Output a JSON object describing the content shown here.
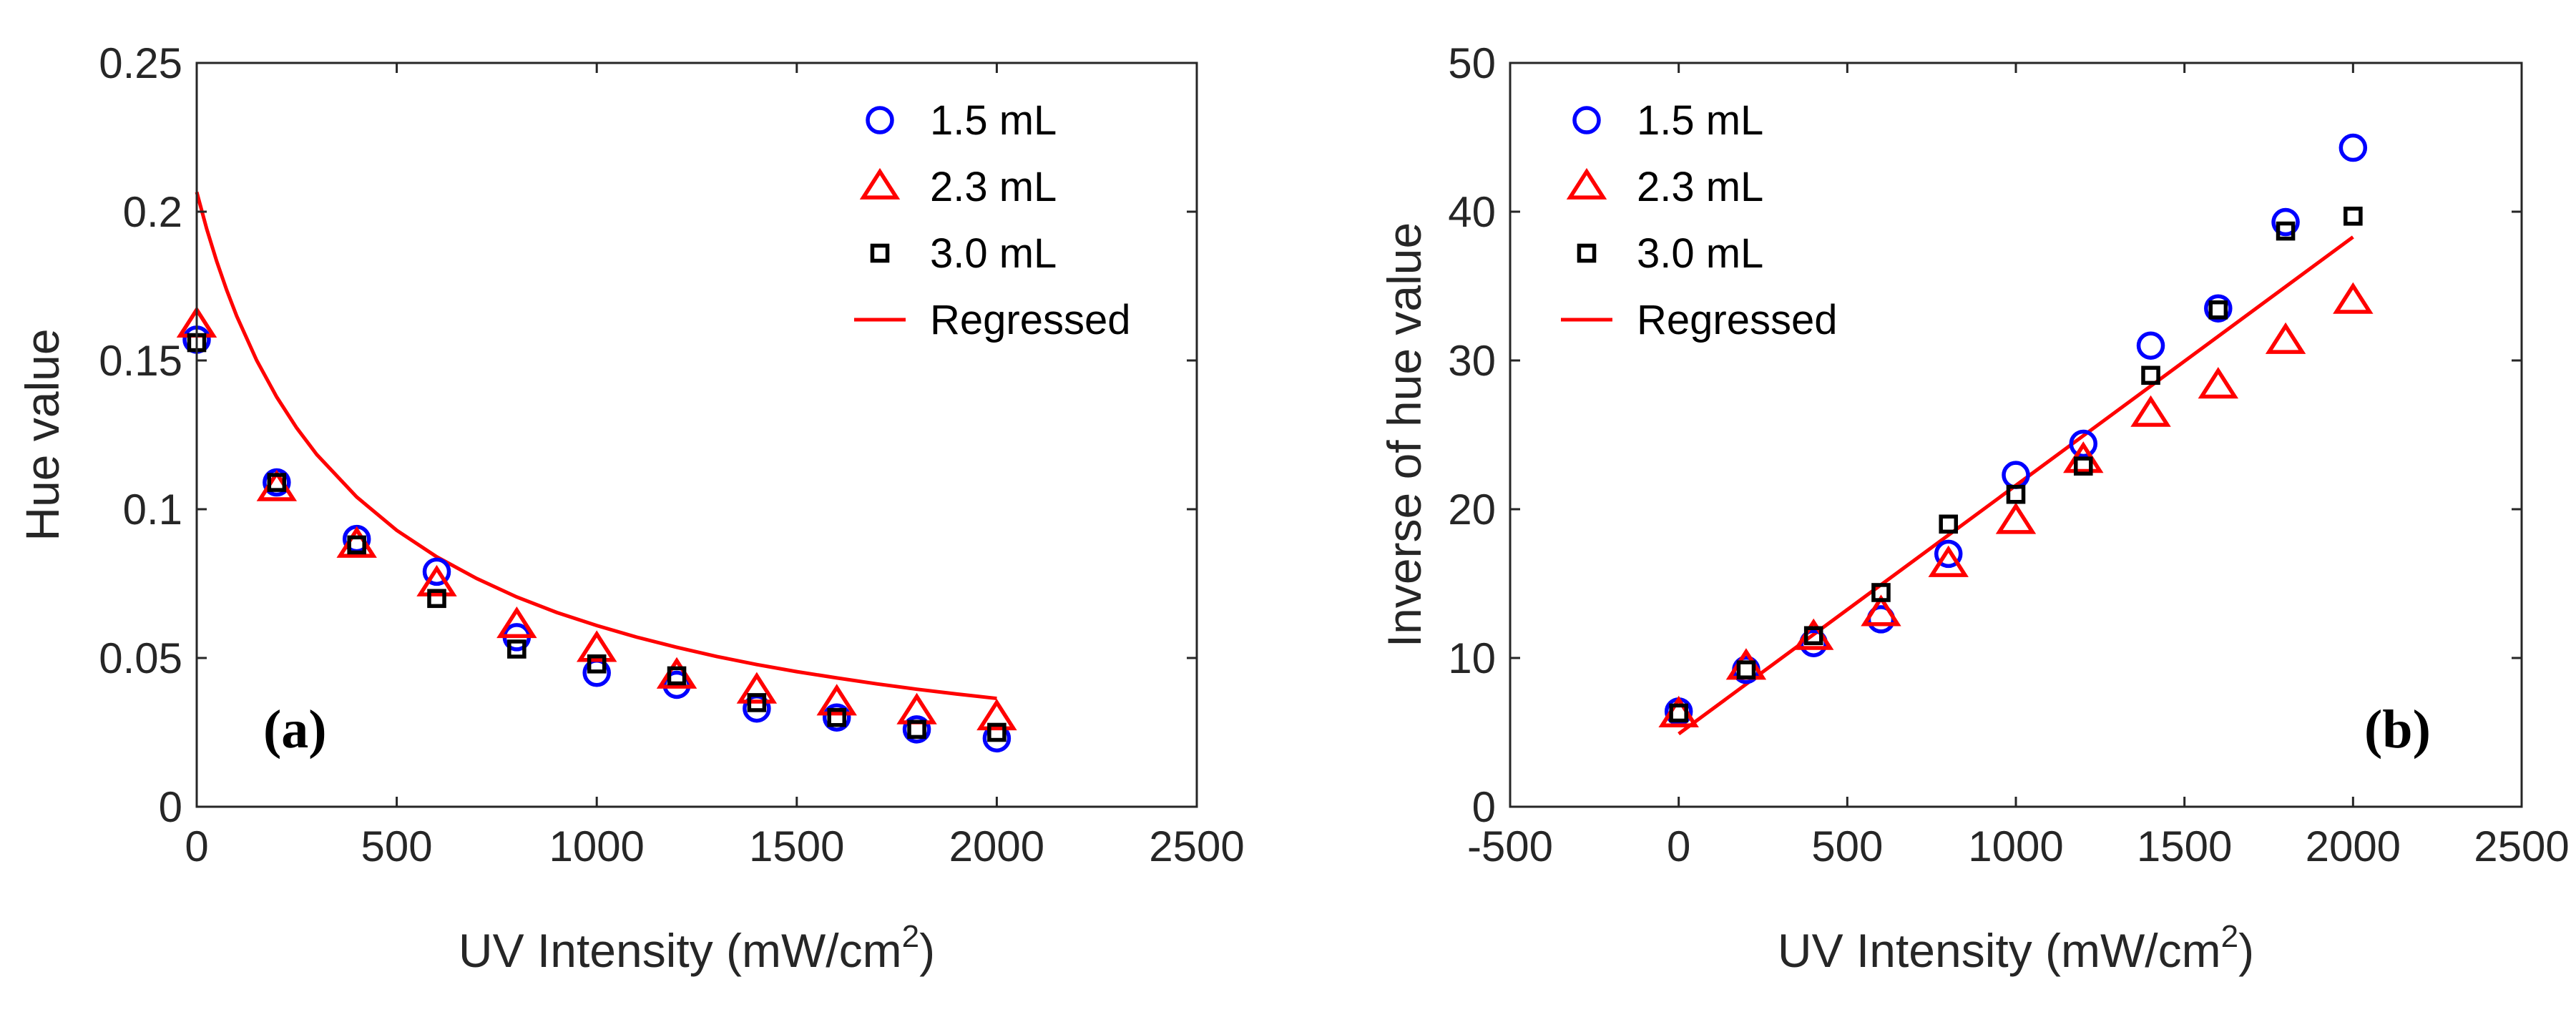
{
  "colors": {
    "series_1": "#0000ff",
    "series_2": "#ff0000",
    "series_3": "#000000",
    "regressed": "#ff0000",
    "axis": "#262626"
  },
  "chart_data": [
    {
      "type": "scatter",
      "panel_label": "(a)",
      "xlabel": "UV Intensity (mW/cm",
      "xlabel_sup": "2",
      "xlabel_end": ")",
      "ylabel": "Hue value",
      "xlim": [
        0,
        2500
      ],
      "ylim": [
        0,
        0.25
      ],
      "xticks": [
        0,
        500,
        1000,
        1500,
        2000,
        2500
      ],
      "xtick_labels": [
        "0",
        "500",
        "1000",
        "1500",
        "2000",
        "2500"
      ],
      "yticks": [
        0,
        0.05,
        0.1,
        0.15,
        0.2,
        0.25
      ],
      "ytick_labels": [
        "0",
        "0.05",
        "0.1",
        "0.15",
        "0.2",
        "0.25"
      ],
      "legend_position": "top-right",
      "x": [
        0,
        200,
        400,
        600,
        800,
        1000,
        1200,
        1400,
        1600,
        1800,
        2000
      ],
      "series": [
        {
          "name": "1.5 mL",
          "marker": "circle",
          "color": "#0000ff",
          "values": [
            0.157,
            0.109,
            0.09,
            0.079,
            0.057,
            0.045,
            0.041,
            0.033,
            0.03,
            0.026,
            0.023
          ]
        },
        {
          "name": "2.3 mL",
          "marker": "triangle",
          "color": "#ff0000",
          "values": [
            0.162,
            0.107,
            0.088,
            0.075,
            0.061,
            0.053,
            0.044,
            0.039,
            0.035,
            0.032,
            0.03
          ]
        },
        {
          "name": "3.0 mL",
          "marker": "square",
          "color": "#000000",
          "values": [
            0.156,
            0.109,
            0.088,
            0.07,
            0.053,
            0.048,
            0.044,
            0.035,
            0.03,
            0.026,
            0.025
          ]
        }
      ],
      "regressed": {
        "name": "Regressed",
        "x": [
          0,
          25,
          50,
          75,
          100,
          150,
          200,
          250,
          300,
          400,
          500,
          600,
          700,
          800,
          900,
          1000,
          1100,
          1200,
          1300,
          1400,
          1500,
          1600,
          1700,
          1800,
          1900,
          2000
        ],
        "y": [
          0.2066,
          0.1942,
          0.1833,
          0.1736,
          0.1649,
          0.15,
          0.1377,
          0.1273,
          0.1184,
          0.1041,
          0.0929,
          0.084,
          0.0767,
          0.0705,
          0.0653,
          0.0609,
          0.057,
          0.0536,
          0.0505,
          0.0478,
          0.0454,
          0.0433,
          0.0413,
          0.0395,
          0.0379,
          0.0364
        ]
      }
    },
    {
      "type": "scatter",
      "panel_label": "(b)",
      "xlabel": "UV Intensity (mW/cm",
      "xlabel_sup": "2",
      "xlabel_end": ")",
      "ylabel": "Inverse of  hue value",
      "xlim": [
        -500,
        2500
      ],
      "ylim": [
        0,
        50
      ],
      "xticks": [
        -500,
        0,
        500,
        1000,
        1500,
        2000,
        2500
      ],
      "xtick_labels": [
        "-500",
        "0",
        "500",
        "1000",
        "1500",
        "2000",
        "2500"
      ],
      "yticks": [
        0,
        10,
        20,
        30,
        40,
        50
      ],
      "ytick_labels": [
        "0",
        "10",
        "20",
        "30",
        "40",
        "50"
      ],
      "legend_position": "top-left",
      "x": [
        0,
        200,
        400,
        600,
        800,
        1000,
        1200,
        1400,
        1600,
        1800,
        2000
      ],
      "series": [
        {
          "name": "1.5 mL",
          "marker": "circle",
          "color": "#0000ff",
          "values": [
            6.4,
            9.2,
            11.0,
            12.6,
            17.0,
            22.3,
            24.4,
            31.0,
            33.5,
            39.3,
            44.3
          ]
        },
        {
          "name": "2.3 mL",
          "marker": "triangle",
          "color": "#ff0000",
          "values": [
            6.2,
            9.4,
            11.4,
            13.0,
            16.3,
            19.2,
            23.3,
            26.4,
            28.3,
            31.3,
            34.0
          ]
        },
        {
          "name": "3.0 mL",
          "marker": "square",
          "color": "#000000",
          "values": [
            6.3,
            9.2,
            11.5,
            14.4,
            19.0,
            21.0,
            22.9,
            29.0,
            33.4,
            38.7,
            39.7
          ]
        }
      ],
      "regressed": {
        "name": "Regressed",
        "x": [
          0,
          2000
        ],
        "y": [
          4.9,
          38.3
        ]
      }
    }
  ]
}
